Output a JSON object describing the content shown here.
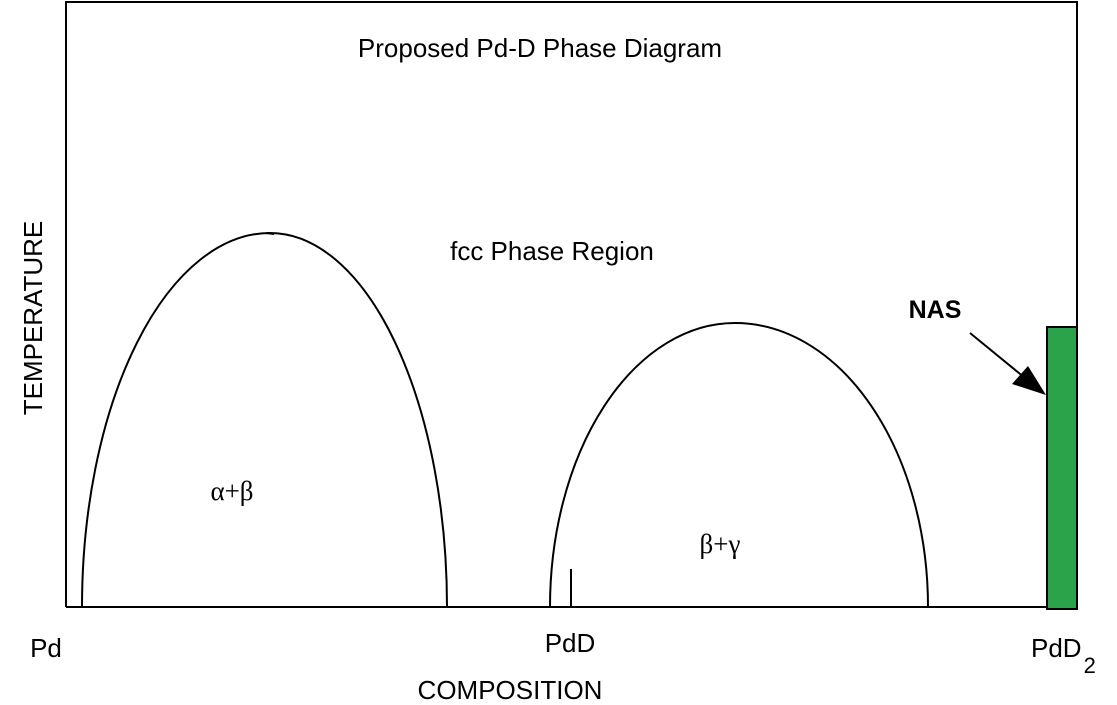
{
  "title": "Proposed Pd-D Phase Diagram",
  "regions": {
    "fcc": "fcc Phase Region",
    "alpha_beta": "α+β",
    "beta_gamma": "β+γ"
  },
  "annotation": "NAS",
  "x_labels": {
    "pd": "Pd",
    "pdd": "PdD",
    "pdd2": {
      "base": "PdD",
      "sub": "2"
    }
  },
  "axes": {
    "y": "TEMPERATURE",
    "x": "COMPOSITION"
  }
}
